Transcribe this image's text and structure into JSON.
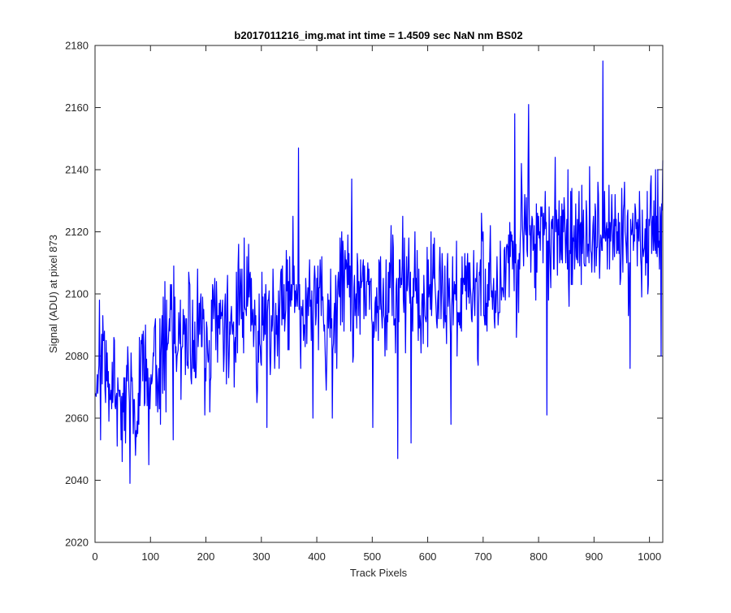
{
  "chart_data": {
    "type": "line",
    "title": "b2017011216_img.mat int time = 1.4509 sec  NaN nm BS02",
    "xlabel": "Track Pixels",
    "ylabel": "Signal (ADU) at pixel 873",
    "xlim": [
      0,
      1024
    ],
    "ylim": [
      2020,
      2180
    ],
    "xticks": [
      0,
      100,
      200,
      300,
      400,
      500,
      600,
      700,
      800,
      900,
      1000
    ],
    "yticks": [
      2020,
      2040,
      2060,
      2080,
      2100,
      2120,
      2140,
      2160,
      2180
    ],
    "grid": false,
    "box": true,
    "line_color": "#0000ff",
    "series": [
      {
        "x_start": 1,
        "x_step": 8,
        "values": [
          2072,
          2084,
          2075,
          2066,
          2072,
          2074,
          2060,
          2068,
          2070,
          2057,
          2072,
          2075,
          2067,
          2079,
          2073,
          2083,
          2084,
          2094,
          2088,
          2090,
          2084,
          2092,
          2080,
          2087,
          2091,
          2080,
          2086,
          2092,
          2087,
          2089,
          2087,
          2089,
          2096,
          2094,
          2099,
          2096,
          2086,
          2094,
          2092,
          2095,
          2092,
          2089,
          2093,
          2098,
          2103,
          2100,
          2093,
          2092,
          2094,
          2101,
          2092,
          2102,
          2087,
          2095,
          2096,
          2104,
          2102,
          2101,
          2092,
          2103,
          2102,
          2102,
          2100,
          2093,
          2100,
          2092,
          2101,
          2097,
          2096,
          2103,
          2103,
          2104,
          2099,
          2097,
          2102,
          2101,
          2103,
          2099,
          2102,
          2102,
          2098,
          2097,
          2094,
          2098,
          2100,
          2100,
          2097,
          2108,
          2099,
          2112,
          2096,
          2108,
          2106,
          2115,
          2112,
          2107,
          2120,
          2118,
          2124,
          2112,
          2119,
          2124,
          2116,
          2121,
          2120,
          2117,
          2122,
          2117,
          2120,
          2116,
          2118,
          2125,
          2121,
          2112,
          2121,
          2122,
          2119,
          2115,
          2116,
          2119,
          2113,
          2121,
          2125,
          2118,
          2117,
          2122,
          2118,
          2124
        ],
        "spikes": [
          [
            10,
            2053
          ],
          [
            40,
            2051
          ],
          [
            55,
            2052
          ],
          [
            63,
            2039
          ],
          [
            72,
            2056
          ],
          [
            97,
            2045
          ],
          [
            118,
            2058
          ],
          [
            141,
            2053
          ],
          [
            198,
            2061
          ],
          [
            310,
            2057
          ],
          [
            367,
            2147
          ],
          [
            393,
            2060
          ],
          [
            428,
            2060
          ],
          [
            463,
            2137
          ],
          [
            501,
            2057
          ],
          [
            546,
            2047
          ],
          [
            570,
            2052
          ],
          [
            642,
            2058
          ],
          [
            691,
            2077
          ],
          [
            757,
            2158
          ],
          [
            782,
            2161
          ],
          [
            815,
            2061
          ],
          [
            916,
            2175
          ],
          [
            965,
            2076
          ],
          [
            1021,
            2080
          ],
          [
            1024,
            2143
          ]
        ]
      }
    ]
  }
}
